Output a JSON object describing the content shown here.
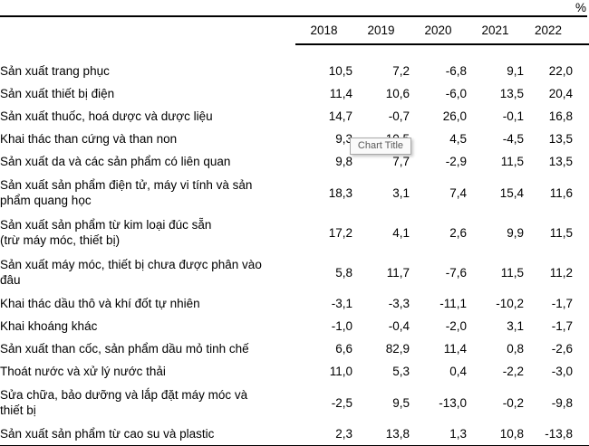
{
  "unit_label": "%",
  "tooltip": {
    "text": "Chart Title"
  },
  "chart_data": {
    "type": "table",
    "title": "",
    "unit": "%",
    "columns": [
      "2018",
      "2019",
      "2020",
      "2021",
      "2022"
    ],
    "rows": [
      {
        "label": "Sản xuất trang phục",
        "values": [
          "10,5",
          "7,2",
          "-6,8",
          "9,1",
          "22,0"
        ]
      },
      {
        "label": "Sản xuất thiết bị điện",
        "values": [
          "11,4",
          "10,6",
          "-6,0",
          "13,5",
          "20,4"
        ]
      },
      {
        "label": "Sản xuất thuốc, hoá dược và dược liệu",
        "values": [
          "14,7",
          "-0,7",
          "26,0",
          "-0,1",
          "16,8"
        ]
      },
      {
        "label": "Khai thác than cứng và than non",
        "values": [
          "9,3",
          "10,5",
          "4,5",
          "-4,5",
          "13,5"
        ]
      },
      {
        "label": "Sản xuất da và các sản phẩm có liên quan",
        "values": [
          "9,8",
          "7,7",
          "-2,9",
          "11,5",
          "13,5"
        ]
      },
      {
        "label": "Sản xuất sản phẩm điện tử, máy vi tính và sản\nphẩm quang học",
        "values": [
          "18,3",
          "3,1",
          "7,4",
          "15,4",
          "11,6"
        ]
      },
      {
        "label": "Sản xuất sản phẩm từ kim loại đúc sẵn\n(trừ máy móc, thiết bị)",
        "values": [
          "17,2",
          "4,1",
          "2,6",
          "9,9",
          "11,5"
        ]
      },
      {
        "label": "Sản xuất máy móc, thiết bị chưa được phân vào\nđâu",
        "values": [
          "5,8",
          "11,7",
          "-7,6",
          "11,5",
          "11,2"
        ]
      },
      {
        "label": "Khai thác dầu thô và khí đốt tự nhiên",
        "values": [
          "-3,1",
          "-3,3",
          "-11,1",
          "-10,2",
          "-1,7"
        ]
      },
      {
        "label": "Khai khoáng khác",
        "values": [
          "-1,0",
          "-0,4",
          "-2,0",
          "3,1",
          "-1,7"
        ]
      },
      {
        "label": "Sản xuất than cốc, sản phẩm dầu mỏ tinh chế",
        "values": [
          "6,6",
          "82,9",
          "11,4",
          "0,8",
          "-2,6"
        ]
      },
      {
        "label": "Thoát nước và xử lý nước thải",
        "values": [
          "11,0",
          "5,3",
          "0,4",
          "-2,2",
          "-3,0"
        ]
      },
      {
        "label": "Sửa chữa, bảo dưỡng và lắp đặt máy móc và\nthiết bị",
        "values": [
          "-2,5",
          "9,5",
          "-13,0",
          "-0,2",
          "-9,8"
        ]
      },
      {
        "label": "Sản xuất sản phẩm từ cao su và plastic",
        "values": [
          "2,3",
          "13,8",
          "1,3",
          "10,8",
          "-13,8"
        ]
      }
    ]
  }
}
